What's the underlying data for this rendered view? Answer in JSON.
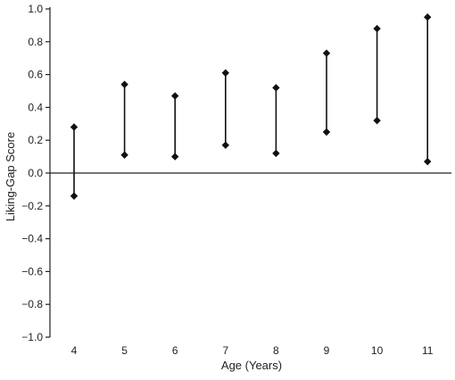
{
  "chart_data": {
    "type": "range",
    "title": "",
    "xlabel": "Age (Years)",
    "ylabel": "Liking-Gap Score",
    "ylim": [
      -1.0,
      1.0
    ],
    "yticks": [
      1.0,
      0.8,
      0.6,
      0.4,
      0.2,
      0.0,
      -0.2,
      -0.4,
      -0.6,
      -0.8,
      -1.0
    ],
    "ytick_labels": [
      "1.0",
      "0.8",
      "0.6",
      "0.4",
      "0.2",
      "0.0",
      "−0.2",
      "−0.4",
      "−0.6",
      "−0.8",
      "−1.0"
    ],
    "categories": [
      "4",
      "5",
      "6",
      "7",
      "8",
      "9",
      "10",
      "11"
    ],
    "low": [
      -0.14,
      0.11,
      0.1,
      0.17,
      0.12,
      0.25,
      0.32,
      0.07
    ],
    "high": [
      0.28,
      0.54,
      0.47,
      0.61,
      0.52,
      0.73,
      0.88,
      0.95
    ],
    "grid": false,
    "zero_line": true
  }
}
